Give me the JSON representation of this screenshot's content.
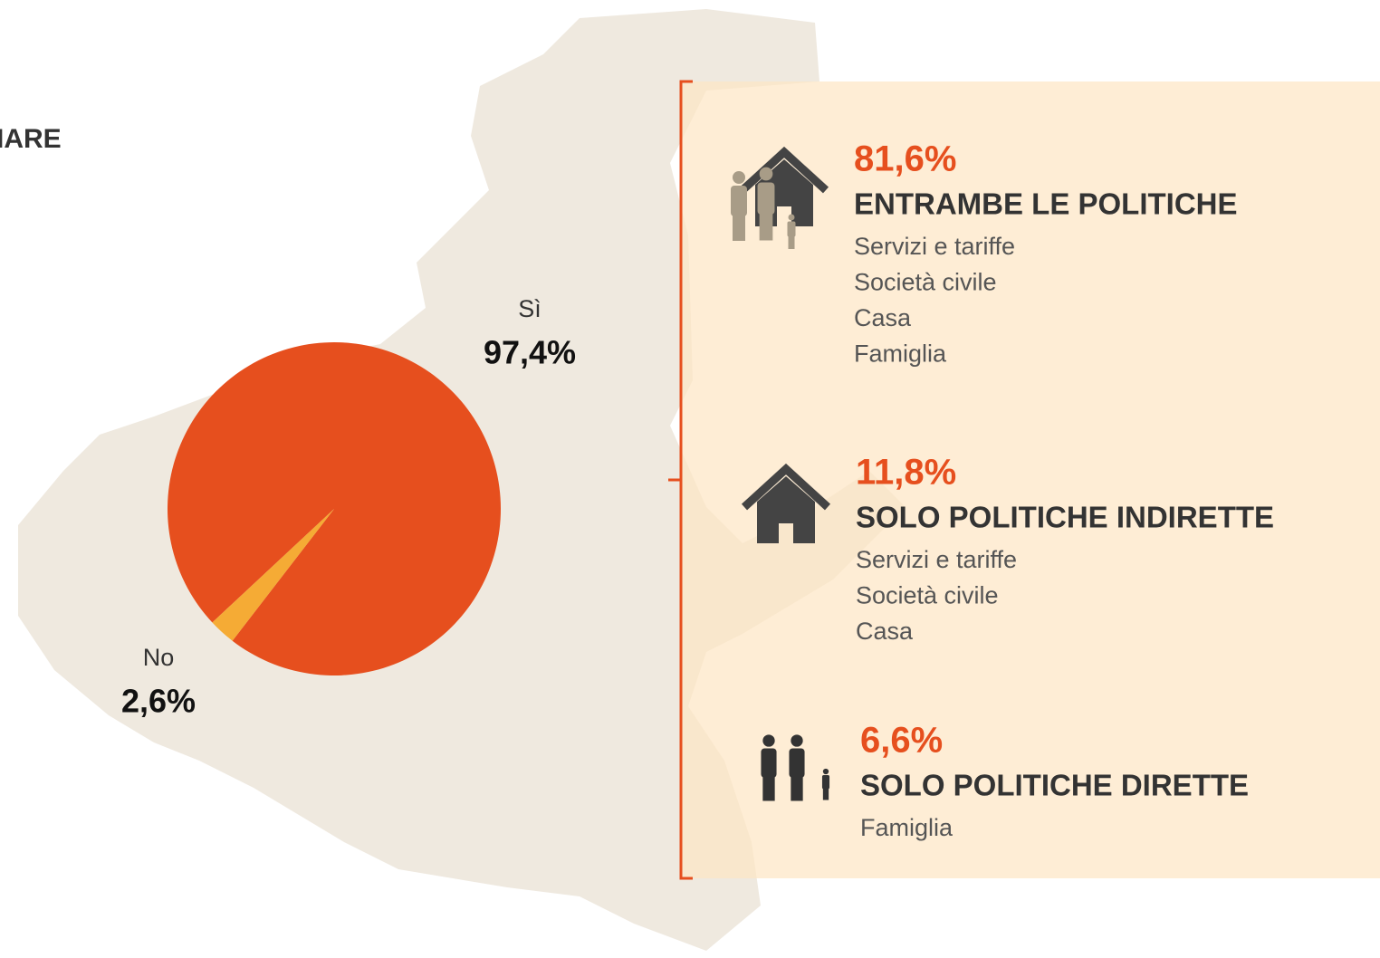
{
  "chart_data": {
    "type": "pie",
    "title": "IARE",
    "categories": [
      "Sì",
      "No"
    ],
    "values": [
      97.4,
      2.6
    ],
    "value_labels": [
      "97,4%",
      "2,6%"
    ],
    "colors": [
      "#e64f1e",
      "#f5ab35"
    ]
  },
  "panel": {
    "items": [
      {
        "percent": "81,6%",
        "title": "ENTRAMBE LE POLITICHE",
        "lines": [
          "Servizi e tariffe",
          "Società civile",
          "Casa",
          "Famiglia"
        ]
      },
      {
        "percent": "11,8%",
        "title": "SOLO POLITICHE INDIRETTE",
        "lines": [
          "Servizi e tariffe",
          "Società civile",
          "Casa"
        ]
      },
      {
        "percent": "6,6%",
        "title": "SOLO POLITICHE DIRETTE",
        "lines": [
          "Famiglia"
        ]
      }
    ]
  }
}
